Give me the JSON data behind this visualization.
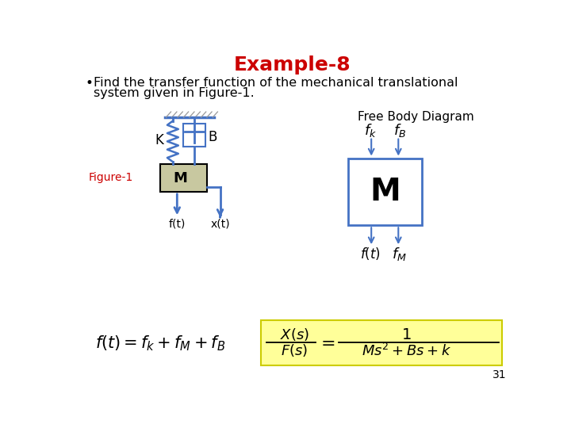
{
  "title": "Example-8",
  "title_color": "#cc0000",
  "title_fontsize": 18,
  "bullet_line1": "Find the transfer function of the mechanical translational",
  "bullet_line2": "system given in Figure-1.",
  "figure1_label": "Figure-1",
  "figure1_label_color": "#cc0000",
  "free_body_label": "Free Body Diagram",
  "bg_color": "#ffffff",
  "dc": "#4472c4",
  "mass_fill_left": "#c8c8a0",
  "mass_fill_right": "#ffffff",
  "mass_border_right": "#4472c4",
  "page_number": "31",
  "eq_box_fill": "#ffff99",
  "eq_box_edge": "#cccc00"
}
